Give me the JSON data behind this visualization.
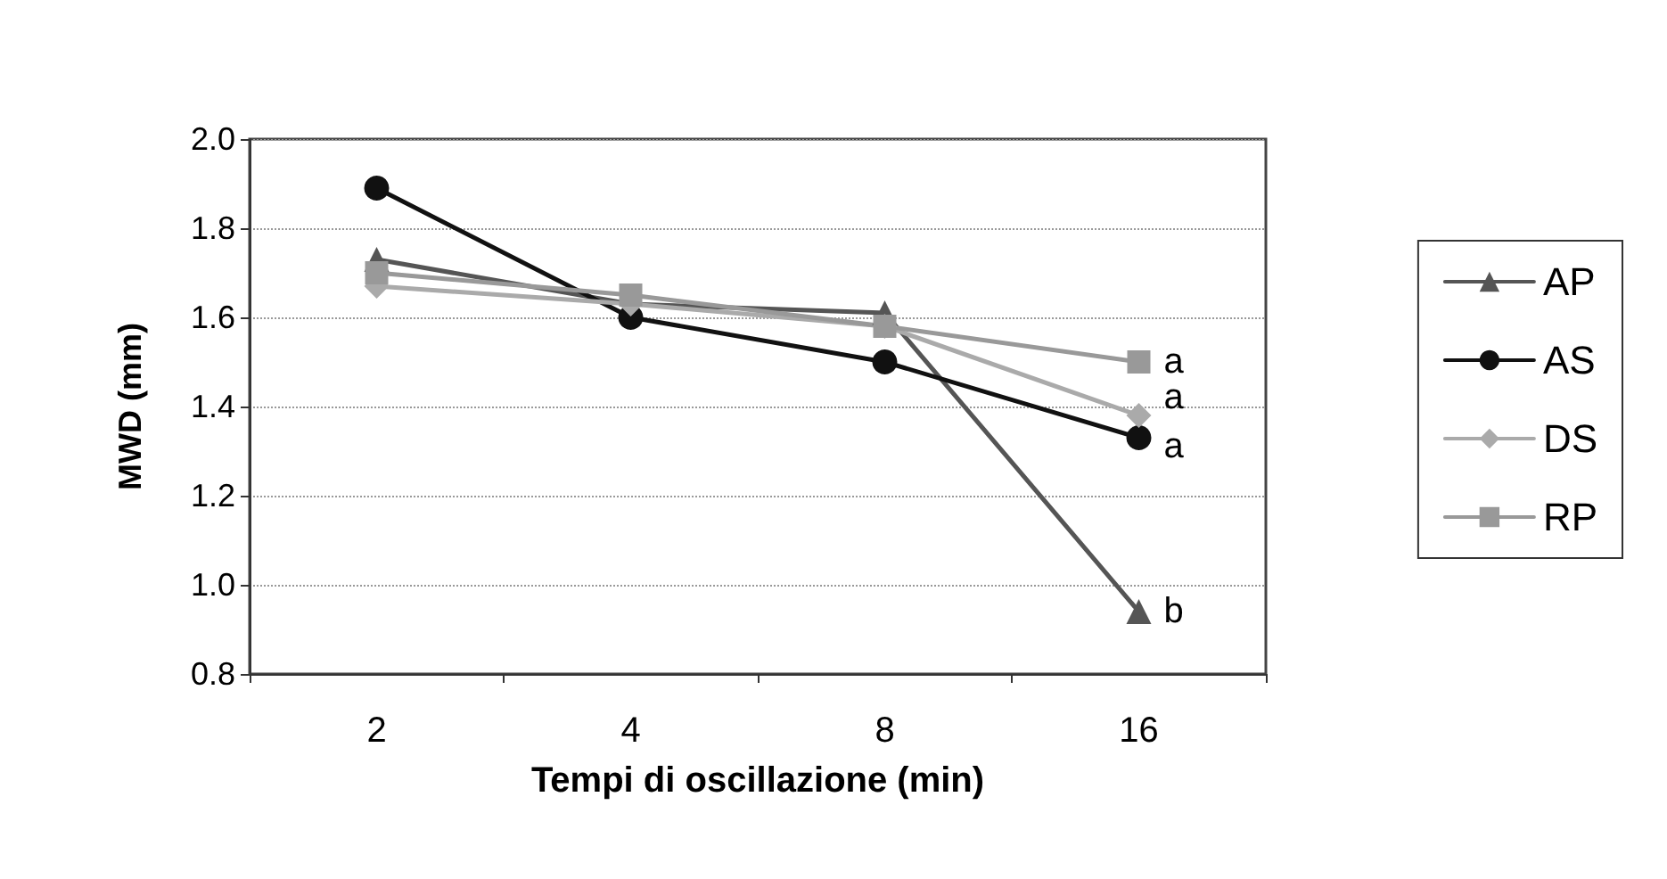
{
  "chart_data": {
    "type": "line",
    "xlabel": "Tempi di oscillazione (min)",
    "ylabel": "MWD (mm)",
    "categories": [
      "2",
      "4",
      "8",
      "16"
    ],
    "series": [
      {
        "name": "AP",
        "color": "#555555",
        "marker": "triangle",
        "values": [
          1.73,
          1.63,
          1.61,
          0.94
        ]
      },
      {
        "name": "AS",
        "color": "#111111",
        "marker": "circle",
        "values": [
          1.89,
          1.6,
          1.5,
          1.33
        ]
      },
      {
        "name": "DS",
        "color": "#aaaaaa",
        "marker": "diamond",
        "values": [
          1.67,
          1.63,
          1.58,
          1.38
        ]
      },
      {
        "name": "RP",
        "color": "#999999",
        "marker": "square",
        "values": [
          1.7,
          1.65,
          1.58,
          1.5
        ]
      }
    ],
    "ylim": [
      0.8,
      2.0
    ],
    "yticks": [
      0.8,
      {
        "value": 1.0,
        "label": "1.0"
      },
      1.2,
      1.4,
      1.6,
      1.8,
      {
        "value": 2.0,
        "label": "2.0"
      }
    ],
    "grid": "y",
    "legend": "right",
    "line_style": "solid",
    "annotations": [
      {
        "text": "a",
        "x": "16",
        "y": 1.5
      },
      {
        "text": "a",
        "x": "16",
        "y": 1.42
      },
      {
        "text": "a",
        "x": "16",
        "y": 1.31
      },
      {
        "text": "b",
        "x": "16",
        "y": 0.94
      }
    ]
  }
}
